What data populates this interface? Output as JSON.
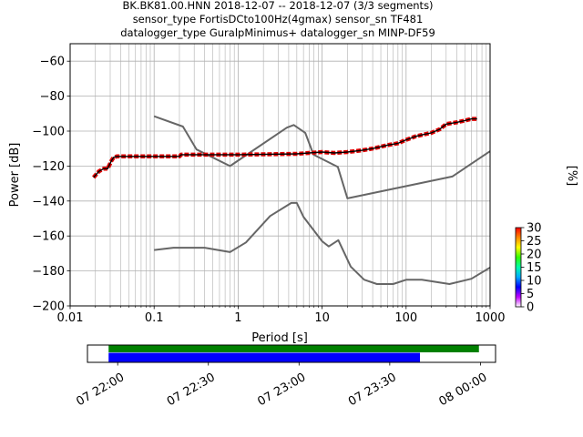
{
  "chart_data": {
    "type": "line",
    "title_lines": [
      "BK.BK81.00.HNN   2018-12-07 -- 2018-12-07  (3/3 segments)",
      "sensor_type FortisDCto100Hz(4gmax) sensor_sn TF481",
      "datalogger_type GuralpMinimus+ datalogger_sn MINP-DF59"
    ],
    "xlabel": "Period [s]",
    "ylabel": "Power [dB]",
    "x_scale": "log",
    "xlim": [
      0.01,
      1000
    ],
    "ylim": [
      -200,
      -50
    ],
    "x_ticks": [
      {
        "value": 0.01,
        "label": "0.01"
      },
      {
        "value": 0.1,
        "label": "0.1"
      },
      {
        "value": 1,
        "label": "1"
      },
      {
        "value": 10,
        "label": "10"
      },
      {
        "value": 100,
        "label": "100"
      },
      {
        "value": 1000,
        "label": "1000"
      }
    ],
    "y_ticks": [
      {
        "value": -60,
        "label": "−60"
      },
      {
        "value": -80,
        "label": "−80"
      },
      {
        "value": -100,
        "label": "−100"
      },
      {
        "value": -120,
        "label": "−120"
      },
      {
        "value": -140,
        "label": "−140"
      },
      {
        "value": -160,
        "label": "−160"
      },
      {
        "value": -180,
        "label": "−180"
      },
      {
        "value": -200,
        "label": "−200"
      }
    ],
    "grid": true,
    "series": [
      {
        "role": "new-high-noise-model",
        "color": "#666666",
        "points": [
          [
            0.1,
            -91.5
          ],
          [
            0.22,
            -97.4
          ],
          [
            0.32,
            -110.5
          ],
          [
            0.8,
            -120
          ],
          [
            3.8,
            -98
          ],
          [
            4.6,
            -96.5
          ],
          [
            6.3,
            -101
          ],
          [
            7.9,
            -113.5
          ],
          [
            15.4,
            -120.5
          ],
          [
            20,
            -138.5
          ],
          [
            354.8,
            -126
          ],
          [
            1000,
            -111.5
          ]
        ]
      },
      {
        "role": "new-low-noise-model",
        "color": "#666666",
        "points": [
          [
            0.1,
            -168
          ],
          [
            0.17,
            -166.7
          ],
          [
            0.4,
            -166.7
          ],
          [
            0.8,
            -169.2
          ],
          [
            1.24,
            -163.7
          ],
          [
            2.4,
            -148.6
          ],
          [
            4.3,
            -141.1
          ],
          [
            5,
            -141.1
          ],
          [
            6,
            -149
          ],
          [
            10,
            -163
          ],
          [
            12,
            -166
          ],
          [
            15.6,
            -162.4
          ],
          [
            21.9,
            -177.5
          ],
          [
            31.6,
            -185
          ],
          [
            45,
            -187.5
          ],
          [
            70,
            -187.5
          ],
          [
            101,
            -185
          ],
          [
            154,
            -185
          ],
          [
            328,
            -187.5
          ],
          [
            600,
            -184.5
          ],
          [
            1000,
            -178
          ]
        ]
      },
      {
        "role": "mode",
        "color": "#000000",
        "points": [
          [
            0.019,
            -126.5
          ],
          [
            0.022,
            -123
          ],
          [
            0.025,
            -121.5
          ],
          [
            0.028,
            -121.5
          ],
          [
            0.031,
            -117
          ],
          [
            0.033,
            -115
          ],
          [
            0.036,
            -114.5
          ],
          [
            0.1,
            -114.5
          ],
          [
            0.2,
            -114.5
          ],
          [
            0.21,
            -113.5
          ],
          [
            1,
            -113.5
          ],
          [
            5,
            -113
          ],
          [
            7,
            -112.5
          ],
          [
            10,
            -112
          ],
          [
            14,
            -112.5
          ],
          [
            20,
            -112
          ],
          [
            30,
            -111
          ],
          [
            40,
            -110
          ],
          [
            60,
            -108
          ],
          [
            80,
            -107
          ],
          [
            100,
            -105
          ],
          [
            130,
            -103
          ],
          [
            160,
            -102
          ],
          [
            200,
            -101
          ],
          [
            250,
            -99
          ],
          [
            300,
            -96
          ],
          [
            400,
            -95
          ],
          [
            500,
            -94
          ],
          [
            600,
            -93
          ],
          [
            700,
            -93
          ]
        ]
      }
    ],
    "colorbar": {
      "label": "[%]",
      "range": [
        0,
        30
      ],
      "ticks": [
        {
          "value": 0,
          "label": "0"
        },
        {
          "value": 5,
          "label": "5"
        },
        {
          "value": 10,
          "label": "10"
        },
        {
          "value": 15,
          "label": "15"
        },
        {
          "value": 20,
          "label": "20"
        },
        {
          "value": 25,
          "label": "25"
        },
        {
          "value": 30,
          "label": "30"
        }
      ],
      "colors": [
        "#ffffff",
        "#c000ff",
        "#0000ff",
        "#00aaff",
        "#00ffaa",
        "#33ff00",
        "#ffff00",
        "#ff8800",
        "#ff0000"
      ]
    },
    "coverage": {
      "time_range": [
        "2018-12-07T21:50:00",
        "2018-12-08T00:05:00"
      ],
      "ticks": [
        {
          "value": "2018-12-07T22:00:00",
          "label": "07 22:00"
        },
        {
          "value": "2018-12-07T22:30:00",
          "label": "07 22:30"
        },
        {
          "value": "2018-12-07T23:00:00",
          "label": "07 23:00"
        },
        {
          "value": "2018-12-07T23:30:00",
          "label": "07 23:30"
        },
        {
          "value": "2018-12-08T00:00:00",
          "label": "08 00:00"
        }
      ],
      "bars": [
        {
          "row": "top",
          "start": "2018-12-07T21:57:00",
          "end": "2018-12-07T23:59:30",
          "color": "#008000"
        },
        {
          "row": "bottom",
          "start": "2018-12-07T21:57:00",
          "end": "2018-12-07T23:40:00",
          "color": "#0000ff"
        }
      ]
    }
  }
}
